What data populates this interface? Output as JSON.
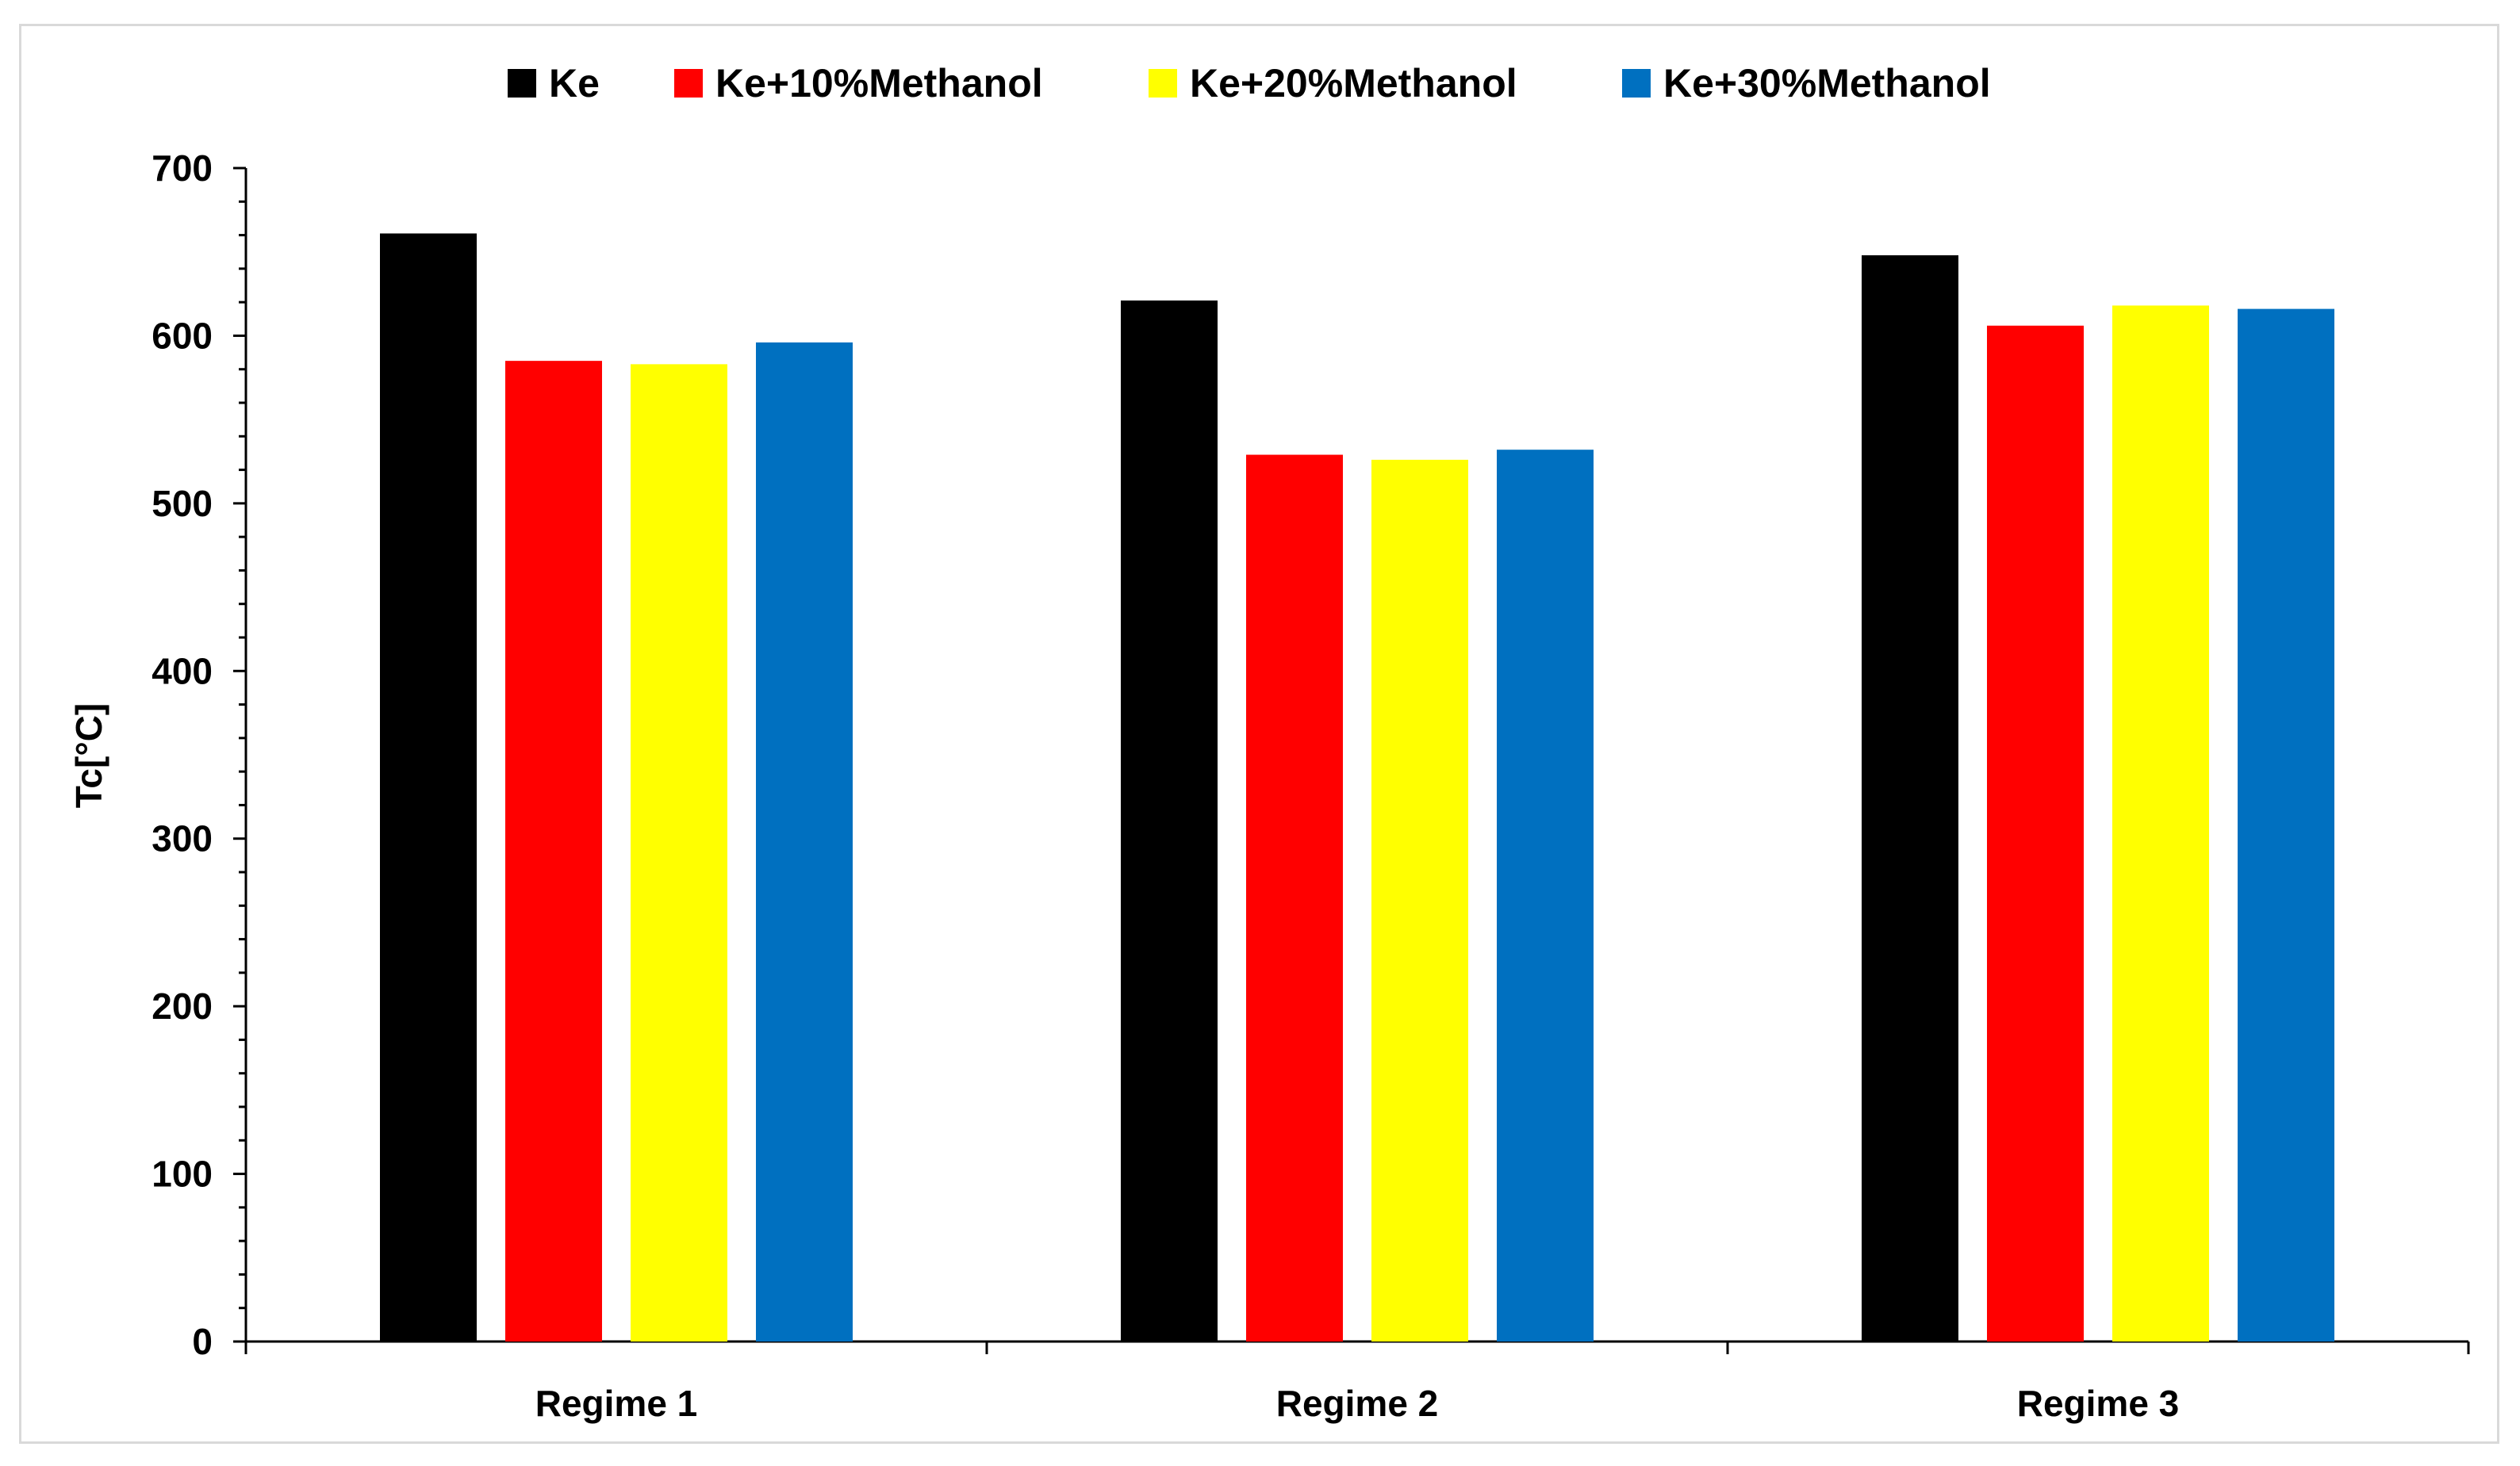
{
  "chart_data": {
    "type": "bar",
    "title": "",
    "xlabel": "",
    "ylabel": "Tc[°C]",
    "categories": [
      "Regime 1",
      "Regime 2",
      "Regime 3"
    ],
    "ylim": [
      0,
      700
    ],
    "yticks": [
      0,
      100,
      200,
      300,
      400,
      500,
      600,
      700
    ],
    "grid": false,
    "legend_position": "top",
    "series": [
      {
        "name": "Ke",
        "color": "#000000",
        "values": [
          661,
          621,
          648
        ]
      },
      {
        "name": "Ke+10%Methanol",
        "color": "#ff0000",
        "values": [
          585,
          529,
          606
        ]
      },
      {
        "name": "Ke+20%Methanol",
        "color": "#ffff00",
        "values": [
          583,
          526,
          618
        ]
      },
      {
        "name": "Ke+30%Methanol",
        "color": "#0070c0",
        "values": [
          596,
          532,
          616
        ]
      }
    ]
  }
}
